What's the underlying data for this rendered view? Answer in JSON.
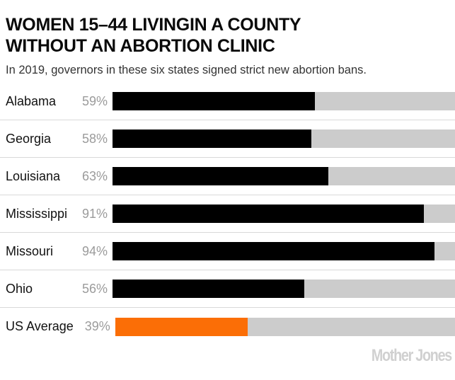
{
  "header": {
    "title_line1": "WOMEN 15–44 LIVINGIN A COUNTY",
    "title_line2": "WITHOUT AN ABORTION CLINIC",
    "subtitle": "In 2019, governors in these six states signed strict new abortion bans."
  },
  "chart_data": {
    "type": "bar",
    "orientation": "horizontal",
    "title": "WOMEN 15–44 LIVINGIN A COUNTY WITHOUT AN ABORTION CLINIC",
    "subtitle": "In 2019, governors in these six states signed strict new abortion bans.",
    "categories": [
      "Alabama",
      "Georgia",
      "Louisiana",
      "Mississippi",
      "Missouri",
      "Ohio",
      "US Average"
    ],
    "values": [
      59,
      58,
      63,
      91,
      94,
      56,
      39
    ],
    "value_labels": [
      "59%",
      "58%",
      "63%",
      "91%",
      "94%",
      "56%",
      "39%"
    ],
    "bar_colors": [
      "#000000",
      "#000000",
      "#000000",
      "#000000",
      "#000000",
      "#000000",
      "#fb6e06"
    ],
    "track_color": "#cccccc",
    "xlim": [
      0,
      100
    ],
    "grid": false,
    "legend": false,
    "xlabel": "",
    "ylabel": ""
  },
  "footer": {
    "logo_text": "Mother Jones"
  },
  "colors": {
    "accent_orange": "#fb6e06",
    "bar_black": "#000000",
    "track_gray": "#cccccc",
    "divider_gray": "#d9d9d9",
    "value_text_gray": "#9b9b9b",
    "logo_gray": "#d0d0d0"
  }
}
